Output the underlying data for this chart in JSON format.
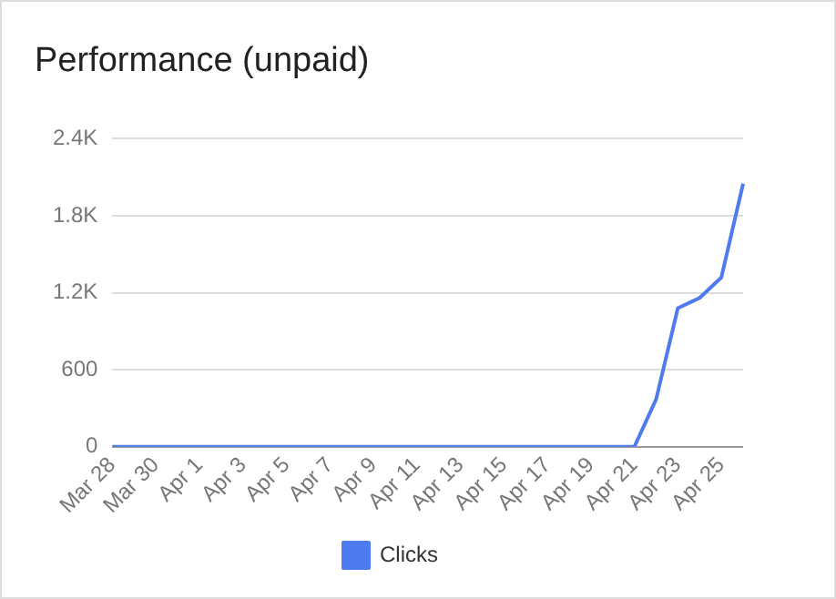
{
  "chart_data": {
    "type": "line",
    "title": "Performance (unpaid)",
    "categories": [
      "Mar 28",
      null,
      "Mar 30",
      null,
      "Apr 1",
      null,
      "Apr 3",
      null,
      "Apr 5",
      null,
      "Apr 7",
      null,
      "Apr 9",
      null,
      "Apr 11",
      null,
      "Apr 13",
      null,
      "Apr 15",
      null,
      "Apr 17",
      null,
      "Apr 19",
      null,
      "Apr 21",
      null,
      "Apr 23",
      null,
      "Apr 25",
      null
    ],
    "series": [
      {
        "name": "Clicks",
        "color": "#4f7bf0",
        "values": [
          0,
          0,
          0,
          0,
          0,
          0,
          0,
          0,
          0,
          0,
          0,
          0,
          0,
          0,
          0,
          0,
          0,
          0,
          0,
          0,
          0,
          0,
          0,
          0,
          0,
          370,
          1080,
          1160,
          1320,
          2050
        ]
      }
    ],
    "ylim": [
      0,
      2400
    ],
    "yticks": [
      0,
      600,
      {
        "value": 1200,
        "label": "1.2K"
      },
      {
        "value": 1800,
        "label": "1.8K"
      },
      {
        "value": 2400,
        "label": "2.4K"
      }
    ],
    "grid": "y",
    "legend": "bottom",
    "marker": "none",
    "line_style": "solid"
  }
}
